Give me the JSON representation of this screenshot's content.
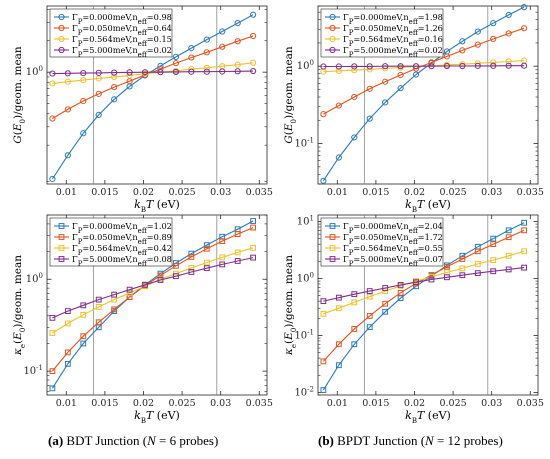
{
  "colors": {
    "blue": "#2a7ab9",
    "orange": "#e0541f",
    "yellow": "#eec12c",
    "purple": "#7e2f8e"
  },
  "chart_data": [
    {
      "panel": "top-left",
      "type": "line",
      "marker": "circle",
      "log_y": true,
      "xlabel": "k_BT (eV)",
      "ylabel": "G(E_0)/geom. mean",
      "xlim": [
        0.0075,
        0.036
      ],
      "ylim": [
        0.085,
        4.3
      ],
      "xticks": [
        "0.01",
        "0.015",
        "0.02",
        "0.025",
        "0.03",
        "0.035"
      ],
      "yticks": [
        "10^0"
      ],
      "vlines": [
        0.0135,
        0.0295
      ],
      "legend_position": "top-left",
      "x": [
        0.0082,
        0.0102,
        0.0122,
        0.0142,
        0.0162,
        0.0182,
        0.0202,
        0.0222,
        0.0242,
        0.0262,
        0.0282,
        0.0302,
        0.0322,
        0.0342
      ],
      "series": [
        {
          "name": "Γ_P=0.000meV,n_eff=0.98",
          "color": "#2a7ab9",
          "values": [
            0.095,
            0.16,
            0.26,
            0.39,
            0.55,
            0.73,
            0.93,
            1.15,
            1.4,
            1.7,
            2.05,
            2.45,
            2.95,
            3.55
          ]
        },
        {
          "name": "Γ_P=0.050meV,n_eff=0.64",
          "color": "#e0541f",
          "values": [
            0.36,
            0.44,
            0.53,
            0.62,
            0.72,
            0.82,
            0.94,
            1.07,
            1.22,
            1.38,
            1.55,
            1.75,
            1.98,
            2.22
          ]
        },
        {
          "name": "Γ_P=0.564meV,n_eff=0.15",
          "color": "#eec12c",
          "values": [
            0.78,
            0.81,
            0.84,
            0.87,
            0.9,
            0.93,
            0.97,
            1.0,
            1.03,
            1.07,
            1.1,
            1.14,
            1.18,
            1.23
          ]
        },
        {
          "name": "Γ_P=5.000meV,n_eff=0.02",
          "color": "#7e2f8e",
          "values": [
            0.97,
            0.975,
            0.98,
            0.985,
            0.99,
            0.995,
            1.0,
            1.0,
            1.005,
            1.01,
            1.01,
            1.015,
            1.02,
            1.025
          ]
        }
      ]
    },
    {
      "panel": "top-right",
      "type": "line",
      "marker": "circle",
      "log_y": true,
      "xlabel": "k_BT (eV)",
      "ylabel": "G(E_0)/geom. mean",
      "xlim": [
        0.0075,
        0.036
      ],
      "ylim": [
        0.03,
        6
      ],
      "xticks": [
        "0.01",
        "0.015",
        "0.02",
        "0.025",
        "0.03",
        "0.035"
      ],
      "yticks": [
        "10^-1",
        "10^0"
      ],
      "vlines": [
        0.0135,
        0.0295
      ],
      "legend_position": "top-left",
      "x": [
        0.0082,
        0.0102,
        0.0122,
        0.0142,
        0.0162,
        0.0182,
        0.0202,
        0.0222,
        0.0242,
        0.0262,
        0.0282,
        0.0302,
        0.0322,
        0.0342
      ],
      "series": [
        {
          "name": "Γ_P=0.000meV,n_eff=1.98",
          "color": "#2a7ab9",
          "values": [
            0.033,
            0.066,
            0.12,
            0.21,
            0.34,
            0.52,
            0.78,
            1.1,
            1.55,
            2.1,
            2.8,
            3.6,
            4.6,
            5.8
          ]
        },
        {
          "name": "Γ_P=0.050meV,n_eff=1.26",
          "color": "#e0541f",
          "values": [
            0.24,
            0.31,
            0.4,
            0.51,
            0.63,
            0.77,
            0.93,
            1.12,
            1.34,
            1.6,
            1.9,
            2.25,
            2.65,
            3.1
          ]
        },
        {
          "name": "Γ_P=0.564meV,n_eff=0.16",
          "color": "#eec12c",
          "values": [
            0.85,
            0.87,
            0.89,
            0.91,
            0.94,
            0.96,
            0.99,
            1.01,
            1.04,
            1.06,
            1.09,
            1.12,
            1.15,
            1.18
          ]
        },
        {
          "name": "Γ_P=5.000meV,n_eff=0.02",
          "color": "#7e2f8e",
          "values": [
            0.99,
            0.99,
            0.995,
            0.995,
            1.0,
            1.0,
            1.0,
            1.0,
            1.005,
            1.005,
            1.01,
            1.01,
            1.015,
            1.015
          ]
        }
      ]
    },
    {
      "panel": "bottom-left",
      "type": "line",
      "marker": "square",
      "log_y": true,
      "xlabel": "k_BT (eV)",
      "ylabel": "κ_e(E_0)/geom. mean",
      "xlim": [
        0.0075,
        0.036
      ],
      "ylim": [
        0.055,
        5
      ],
      "xticks": [
        "0.01",
        "0.015",
        "0.02",
        "0.025",
        "0.03",
        "0.035"
      ],
      "yticks": [
        "10^-1",
        "10^0"
      ],
      "vlines": [
        0.0135,
        0.0295
      ],
      "legend_position": "top-left",
      "x": [
        0.0082,
        0.0102,
        0.0122,
        0.0142,
        0.0162,
        0.0182,
        0.0202,
        0.0222,
        0.0242,
        0.0262,
        0.0282,
        0.0302,
        0.0322,
        0.0342
      ],
      "series": [
        {
          "name": "Γ_P=0.000meV,n_eff=1.02",
          "color": "#2a7ab9",
          "values": [
            0.065,
            0.12,
            0.2,
            0.3,
            0.45,
            0.64,
            0.87,
            1.15,
            1.5,
            1.9,
            2.35,
            2.9,
            3.5,
            4.3
          ]
        },
        {
          "name": "Γ_P=0.050meV,n_eff=0.89",
          "color": "#e0541f",
          "values": [
            0.1,
            0.16,
            0.24,
            0.34,
            0.47,
            0.64,
            0.85,
            1.1,
            1.4,
            1.75,
            2.15,
            2.6,
            3.1,
            3.65
          ]
        },
        {
          "name": "Γ_P=0.564meV,n_eff=0.42",
          "color": "#eec12c",
          "values": [
            0.26,
            0.33,
            0.41,
            0.5,
            0.6,
            0.71,
            0.84,
            1.0,
            1.15,
            1.33,
            1.52,
            1.73,
            1.96,
            2.2
          ]
        },
        {
          "name": "Γ_P=5.000meV,n_eff=0.08",
          "color": "#7e2f8e",
          "values": [
            0.38,
            0.45,
            0.52,
            0.6,
            0.68,
            0.77,
            0.87,
            0.98,
            1.08,
            1.2,
            1.32,
            1.45,
            1.58,
            1.72
          ]
        }
      ]
    },
    {
      "panel": "bottom-right",
      "type": "line",
      "marker": "square",
      "log_y": true,
      "xlabel": "k_BT (eV)",
      "ylabel": "κ_e(E_0)/geom. mean",
      "xlim": [
        0.0075,
        0.036
      ],
      "ylim": [
        0.009,
        13
      ],
      "xticks": [
        "0.01",
        "0.015",
        "0.02",
        "0.025",
        "0.03",
        "0.035"
      ],
      "yticks": [
        "10^-2",
        "10^-1",
        "10^0",
        "10^1"
      ],
      "vlines": [
        0.0135,
        0.0295
      ],
      "legend_position": "top-left",
      "x": [
        0.0082,
        0.0102,
        0.0122,
        0.0142,
        0.0162,
        0.0182,
        0.0202,
        0.0222,
        0.0242,
        0.0262,
        0.0282,
        0.0302,
        0.0322,
        0.0342
      ],
      "series": [
        {
          "name": "Γ_P=0.000meV,n_eff=2.04",
          "color": "#2a7ab9",
          "values": [
            0.011,
            0.03,
            0.07,
            0.14,
            0.26,
            0.45,
            0.73,
            1.1,
            1.7,
            2.5,
            3.6,
            5.0,
            7.0,
            9.5
          ]
        },
        {
          "name": "Γ_P=0.050meV,n_eff=1.72",
          "color": "#e0541f",
          "values": [
            0.035,
            0.07,
            0.13,
            0.22,
            0.36,
            0.56,
            0.82,
            1.15,
            1.6,
            2.2,
            3.0,
            4.0,
            5.3,
            7.0
          ]
        },
        {
          "name": "Γ_P=0.564meV,n_eff=0.55",
          "color": "#eec12c",
          "values": [
            0.24,
            0.3,
            0.38,
            0.48,
            0.6,
            0.74,
            0.9,
            1.07,
            1.28,
            1.5,
            1.8,
            2.1,
            2.5,
            3.0
          ]
        },
        {
          "name": "Γ_P=5.000meV,n_eff=0.07",
          "color": "#7e2f8e",
          "values": [
            0.4,
            0.46,
            0.53,
            0.6,
            0.68,
            0.77,
            0.86,
            0.96,
            1.05,
            1.14,
            1.24,
            1.34,
            1.44,
            1.55
          ]
        }
      ]
    }
  ],
  "captions": {
    "a": {
      "letter": "(a)",
      "text": " BDT Junction (",
      "n": "N",
      "rest": " = 6 probes)"
    },
    "b": {
      "letter": "(b)",
      "text": " BPDT Junction (",
      "n": "N",
      "rest": " = 12 probes)"
    }
  }
}
